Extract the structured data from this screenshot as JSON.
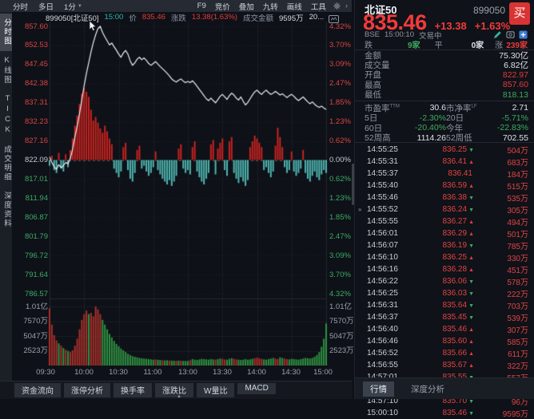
{
  "colors": {
    "up": "#e23c3b",
    "down": "#3cab62",
    "bar_up": "#c8231f",
    "bar_down": "#4fb7b2",
    "vol_up": "#a8302a",
    "vol_down": "#2f9241",
    "line": "#eceff2",
    "teal_time": "#2fb5b5",
    "buy_button": "#d93434",
    "add_blue": "#3d7bd6"
  },
  "toolbar": {
    "left": [
      {
        "name": "timeshare",
        "label": "分时"
      },
      {
        "name": "multiday",
        "label": "多日"
      },
      {
        "name": "one-minute",
        "label": "1分",
        "caret": true
      }
    ],
    "right": [
      {
        "name": "f9",
        "label": "F9"
      },
      {
        "name": "auction",
        "label": "竞价"
      },
      {
        "name": "overlay",
        "label": "叠加"
      },
      {
        "name": "nine-turn",
        "label": "九转"
      },
      {
        "name": "draw-line",
        "label": "画线"
      },
      {
        "name": "tools",
        "label": "工具"
      }
    ]
  },
  "sidebar": {
    "active": 0,
    "tabs": [
      {
        "name": "timeshare-chart",
        "label": "分时图"
      },
      {
        "name": "kline-chart",
        "label": "K线图"
      },
      {
        "name": "tick",
        "label": "TICK"
      },
      {
        "name": "trade-details",
        "label": "成交明细"
      },
      {
        "name": "depth-info",
        "label": "深度资料"
      }
    ]
  },
  "chart_header": {
    "code": "899050[北证50]",
    "time": "15:00",
    "price_label": "价",
    "price": "835.46",
    "change_label": "涨跌",
    "change": "13.38(1.63%)",
    "amount_label": "成交金额",
    "amount": "9595万",
    "extra": "20..."
  },
  "bottom_tabs": [
    {
      "name": "fund-flow",
      "label": "资金流向"
    },
    {
      "name": "limit-analysis",
      "label": "涨停分析"
    },
    {
      "name": "turnover",
      "label": "换手率"
    },
    {
      "name": "advance-decline",
      "label": "涨跌比"
    },
    {
      "name": "w-volume-ratio",
      "label": "W量比"
    },
    {
      "name": "macd",
      "label": "MACD"
    }
  ],
  "bottom_handle": "▲",
  "quote": {
    "name": "北证50",
    "code": "899050",
    "buy_label": "买",
    "price": "835.46",
    "change": "+13.38",
    "pct": "+1.63%",
    "exchange": "BSE",
    "time": "15:00:10",
    "status": "交易中",
    "down_label": "跌",
    "down": "9家",
    "flat_label": "平",
    "flat": "0家",
    "up_label": "涨",
    "up": "239家",
    "amount_label": "金额",
    "amount": "75.30亿",
    "volume_label": "成交量",
    "volume": "6.82亿",
    "open_label": "开盘",
    "open": "822.97",
    "high_label": "最高",
    "high": "857.60",
    "low_label": "最低",
    "low": "818.13",
    "pe_label": "市盈率",
    "pe_sup": "TTM",
    "pe": "30.6",
    "pb_label": "市净率",
    "pb_sup": "LF",
    "pb": "2.71",
    "d5_label": "5日",
    "d5": "-2.30%",
    "d20_label": "20日",
    "d20": "-5.71%",
    "d60_label": "60日",
    "d60": "-20.40%",
    "ytd_label": "今年",
    "ytd": "-22.83%",
    "w52h_label": "52周高",
    "w52h": "1114.26",
    "w52l_label": "52周低",
    "w52l": "702.55",
    "trades": [
      {
        "time": "14:55:25",
        "price": "836.25",
        "dir": "d",
        "vol": "504万"
      },
      {
        "time": "14:55:31",
        "price": "836.41",
        "dir": "u",
        "vol": "683万"
      },
      {
        "time": "14:55:37",
        "price": "836.41",
        "dir": "f",
        "vol": "184万"
      },
      {
        "time": "14:55:40",
        "price": "836.59",
        "dir": "u",
        "vol": "515万"
      },
      {
        "time": "14:55:46",
        "price": "836.38",
        "dir": "d",
        "vol": "535万"
      },
      {
        "time": "14:55:52",
        "price": "836.24",
        "dir": "d",
        "vol": "305万",
        "marker": "»"
      },
      {
        "time": "14:55:55",
        "price": "836.27",
        "dir": "u",
        "vol": "494万"
      },
      {
        "time": "14:56:01",
        "price": "836.29",
        "dir": "u",
        "vol": "501万"
      },
      {
        "time": "14:56:07",
        "price": "836.19",
        "dir": "d",
        "vol": "785万"
      },
      {
        "time": "14:56:10",
        "price": "836.25",
        "dir": "u",
        "vol": "330万"
      },
      {
        "time": "14:56:16",
        "price": "836.28",
        "dir": "u",
        "vol": "451万"
      },
      {
        "time": "14:56:22",
        "price": "836.06",
        "dir": "d",
        "vol": "578万"
      },
      {
        "time": "14:56:25",
        "price": "836.03",
        "dir": "d",
        "vol": "222万"
      },
      {
        "time": "14:56:31",
        "price": "835.64",
        "dir": "d",
        "vol": "703万"
      },
      {
        "time": "14:56:37",
        "price": "835.45",
        "dir": "d",
        "vol": "539万"
      },
      {
        "time": "14:56:40",
        "price": "835.46",
        "dir": "u",
        "vol": "307万"
      },
      {
        "time": "14:56:46",
        "price": "835.60",
        "dir": "u",
        "vol": "585万"
      },
      {
        "time": "14:56:52",
        "price": "835.66",
        "dir": "u",
        "vol": "611万"
      },
      {
        "time": "14:56:55",
        "price": "835.67",
        "dir": "u",
        "vol": "322万"
      },
      {
        "time": "14:57:01",
        "price": "835.55",
        "dir": "d",
        "vol": "557万"
      },
      {
        "time": "14:57:07",
        "price": "835.73",
        "dir": "u",
        "vol": "556万"
      },
      {
        "time": "14:57:10",
        "price": "835.70",
        "dir": "d",
        "vol": "96万"
      },
      {
        "time": "15:00:10",
        "price": "835.46",
        "dir": "d",
        "vol": "9595万"
      }
    ],
    "bottom_tabs": [
      {
        "name": "quote",
        "label": "行情",
        "active": true
      },
      {
        "name": "depth-analysis",
        "label": "深度分析",
        "active": false
      }
    ]
  },
  "chart_data": {
    "type": "line+bar",
    "title": "899050[北证50] 分时图 (time-share intraday)",
    "x_labels": [
      "09:30",
      "10:00",
      "10:30",
      "11:00",
      "13:00",
      "13:30",
      "14:00",
      "14:30",
      "15:00"
    ],
    "price_axis": [
      "857.60",
      "852.53",
      "847.45",
      "842.38",
      "837.31",
      "832.23",
      "827.16",
      "822.09",
      "817.01",
      "811.94",
      "806.87",
      "801.79",
      "796.72",
      "791.64",
      "786.57"
    ],
    "pct_axis": [
      "4.32%",
      "3.70%",
      "3.09%",
      "2.47%",
      "1.85%",
      "1.23%",
      "0.62%",
      "0.00%",
      "0.62%",
      "1.23%",
      "1.85%",
      "2.47%",
      "3.09%",
      "3.70%",
      "4.32%"
    ],
    "volume_axis": [
      "1.01亿",
      "7570万",
      "5047万",
      "2523万"
    ],
    "prev_close": 822.09,
    "pct_range": [
      -4.32,
      4.32
    ],
    "minutes_per_point": 2,
    "pct": [
      0.1,
      -0.08,
      -0.22,
      -0.3,
      -0.15,
      -0.25,
      -0.18,
      -0.08,
      -0.12,
      0.05,
      0.35,
      0.75,
      1.1,
      1.5,
      1.95,
      2.4,
      2.8,
      3.15,
      3.5,
      3.8,
      4.05,
      4.25,
      4.32,
      4.12,
      3.98,
      3.85,
      3.72,
      3.78,
      3.66,
      3.55,
      3.42,
      3.32,
      3.46,
      3.54,
      3.42,
      3.2,
      3.06,
      3.14,
      3.26,
      3.32,
      3.24,
      3.3,
      3.22,
      3.12,
      3.06,
      3.12,
      3.18,
      3.1,
      3.02,
      2.95,
      2.88,
      2.8,
      2.72,
      2.62,
      2.56,
      2.52,
      2.58,
      2.62,
      2.55,
      2.5,
      2.54,
      2.5,
      2.56,
      2.48,
      2.38,
      2.28,
      2.18,
      2.08,
      1.98,
      1.92,
      2.0,
      1.92,
      1.85,
      1.95,
      2.06,
      2.12,
      2.04,
      1.96,
      2.08,
      2.16,
      2.1,
      2.0,
      1.94,
      2.04,
      1.9,
      1.78,
      1.86,
      1.98,
      2.1,
      2.2,
      2.26,
      2.18,
      2.12,
      2.2,
      2.26,
      2.18,
      2.12,
      2.16,
      2.22,
      2.16,
      2.1,
      2.14,
      2.08,
      2.02,
      2.08,
      2.12,
      2.06,
      1.98,
      1.92,
      1.98,
      2.04,
      1.96,
      1.88,
      1.82,
      1.88,
      1.8,
      1.74,
      1.7,
      1.74,
      1.68,
      1.63
    ],
    "delta": [
      -8,
      6,
      -14,
      -18,
      10,
      -12,
      -16,
      8,
      -10,
      14,
      30,
      48,
      62,
      78,
      92,
      100,
      95,
      88,
      70,
      55,
      60,
      52,
      44,
      38,
      48,
      40,
      30,
      22,
      -12,
      -18,
      -24,
      -16,
      18,
      24,
      -14,
      -26,
      -30,
      -18,
      14,
      20,
      -12,
      -8,
      -16,
      -22,
      -18,
      -10,
      12,
      -14,
      -20,
      -26,
      -30,
      -34,
      -28,
      -36,
      -30,
      -22,
      16,
      22,
      -12,
      -18,
      -14,
      -20,
      18,
      26,
      -16,
      -24,
      -30,
      -34,
      -26,
      -18,
      22,
      28,
      -20,
      16,
      24,
      30,
      -14,
      -22,
      26,
      32,
      -18,
      -26,
      -32,
      -24,
      -30,
      -36,
      -28,
      18,
      26,
      34,
      30,
      24,
      18,
      -14,
      -10,
      -18,
      -24,
      -16,
      20,
      45,
      32,
      18,
      -10,
      -18,
      -14,
      12,
      -16,
      -22,
      -18,
      -12,
      14,
      -18,
      -26,
      -30,
      -22,
      -16,
      -24,
      -28,
      -20,
      -14,
      -18
    ],
    "volume_wan": [
      9800,
      7000,
      5200,
      4300,
      3800,
      3400,
      3000,
      2700,
      2500,
      2300,
      2600,
      3400,
      4600,
      6200,
      7800,
      8800,
      9400,
      8800,
      9000,
      8400,
      10100,
      9600,
      8800,
      7800,
      7000,
      6200,
      5400,
      4800,
      4200,
      3700,
      3300,
      2900,
      2600,
      2300,
      2000,
      1800,
      1600,
      1500,
      1400,
      1300,
      1250,
      1200,
      1150,
      1100,
      1050,
      1000,
      1050,
      980,
      950,
      900,
      880,
      900,
      860,
      840,
      820,
      800,
      850,
      820,
      800,
      780,
      800,
      900,
      1100,
      1000,
      950,
      1050,
      1150,
      1100,
      1050,
      1000,
      1100,
      1050,
      1000,
      1100,
      1200,
      1150,
      1050,
      1000,
      1150,
      1250,
      1150,
      1050,
      1000,
      950,
      1000,
      1100,
      1000,
      1050,
      1150,
      1250,
      1350,
      1250,
      1150,
      1050,
      1000,
      1100,
      1200,
      1300,
      1200,
      1100,
      1400,
      1300,
      1200,
      1100,
      1050,
      1150,
      1100,
      1050,
      1000,
      1100,
      1200,
      1300,
      1250,
      1200,
      1300,
      1500,
      1800,
      2300,
      3200,
      4600,
      7200
    ],
    "volume_color": "rrrrgrgrgrrrrrrrrgrrrrrgggggggggggggggggggggggrggrggrggrgrgggrggggggggggrggrrgggrrgggggggrrrrgggggrrggrrggggggggggggggggggg"
  }
}
